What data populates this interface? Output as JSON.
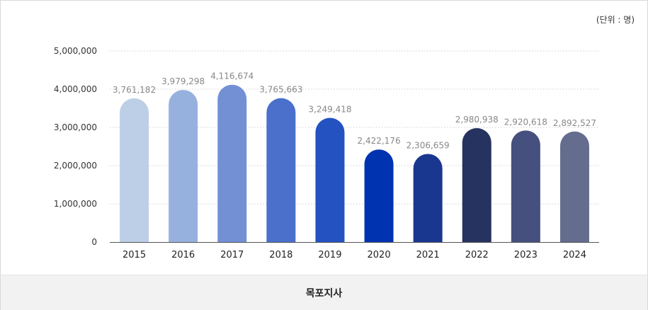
{
  "unit_label": "(단위 : 명)",
  "footer_label": "목포지사",
  "chart_data": {
    "type": "bar",
    "categories": [
      "2015",
      "2016",
      "2017",
      "2018",
      "2019",
      "2020",
      "2021",
      "2022",
      "2023",
      "2024"
    ],
    "values": [
      3761182,
      3979298,
      4116674,
      3765663,
      3249418,
      2422176,
      2306659,
      2980938,
      2920618,
      2892527
    ],
    "value_labels": [
      "3,761,182",
      "3,979,298",
      "4,116,674",
      "3,765,663",
      "3,249,418",
      "2,422,176",
      "2,306,659",
      "2,980,938",
      "2,920,618",
      "2,892,527"
    ],
    "colors": [
      "#bccfe6",
      "#97b1df",
      "#7390d5",
      "#4a70cb",
      "#2452c1",
      "#0033b0",
      "#1a3790",
      "#263260",
      "#46507e",
      "#656d8f"
    ],
    "yticks": [
      0,
      1000000,
      2000000,
      3000000,
      4000000,
      5000000
    ],
    "ytick_labels": [
      "0",
      "1,000,000",
      "2,000,000",
      "3,000,000",
      "4,000,000",
      "5,000,000"
    ],
    "ylim": [
      0,
      5000000
    ],
    "grid": true,
    "title": "",
    "xlabel": "",
    "ylabel": ""
  }
}
